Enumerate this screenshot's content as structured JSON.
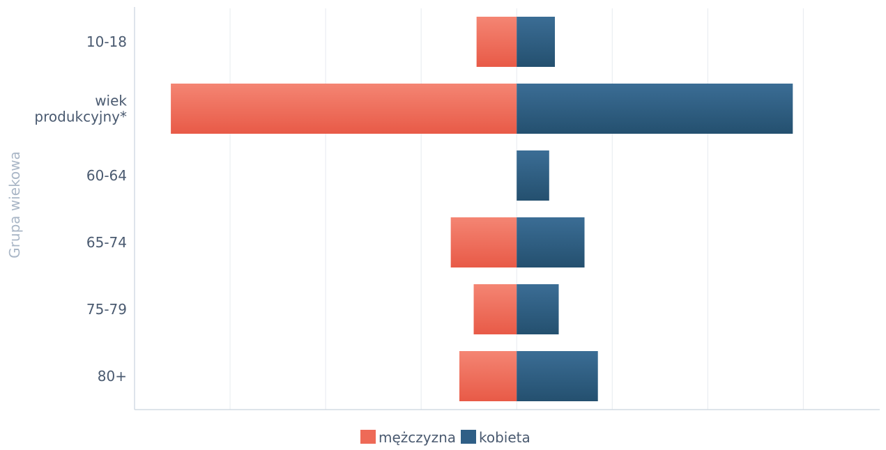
{
  "chart_data": {
    "type": "bar",
    "orientation": "horizontal",
    "layout": "diverging",
    "categories": [
      "10-18",
      "wiek produkcyjny*",
      "60-64",
      "65-74",
      "75-79",
      "80+"
    ],
    "series": [
      {
        "name": "mężczyzna",
        "values": [
          -4.2,
          -36.2,
          0,
          -6.9,
          -4.5,
          -6.0
        ],
        "color": "#ee6a57"
      },
      {
        "name": "kobieta",
        "values": [
          4.0,
          28.9,
          3.4,
          7.1,
          4.4,
          8.5
        ],
        "color": "#2f5f86"
      }
    ],
    "title": "",
    "xlabel": "",
    "ylabel": "Grupa wiekowa",
    "xlim": [
      -40,
      38
    ],
    "x_gridlines": [
      -30,
      -20,
      -10,
      0,
      10,
      20,
      30
    ],
    "grid": true,
    "legend": {
      "position": "bottom-center"
    }
  }
}
